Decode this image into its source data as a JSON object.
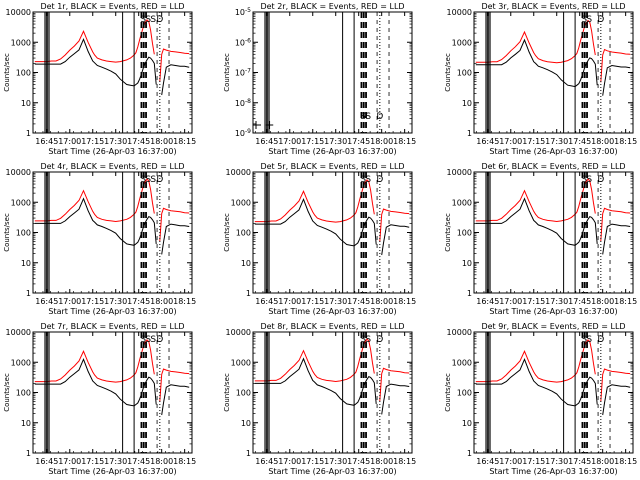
{
  "figure": {
    "start_time_label": "Start Time (26-Apr-03 16:37:00)",
    "ylabel": "Counts/sec"
  },
  "colors": {
    "events": "#000000",
    "lld": "#ff0000",
    "axes": "#000000"
  },
  "chart_data": [
    {
      "type": "line",
      "title": "Det 1r, BLACK = Events, RED = LLD",
      "scale": "log",
      "ylim": [
        1,
        10000
      ],
      "yticks": [
        "1",
        "10",
        "100",
        "1000",
        "10000"
      ],
      "xlim": [
        16.6,
        18.33
      ],
      "xticks": [
        "16:45",
        "17:00",
        "17:15",
        "17:30",
        "17:45",
        "18:00",
        "18:15"
      ],
      "has_data": true,
      "flags": [
        "S",
        "S",
        "S",
        "D"
      ]
    },
    {
      "type": "line",
      "title": "Det 2r, BLACK = Events, RED = LLD",
      "scale": "log",
      "ylim": [
        1e-09,
        1e-05
      ],
      "yticks": [
        "10^-9",
        "10^-8",
        "10^-7",
        "10^-6",
        "10^-5"
      ],
      "xlim": [
        16.6,
        18.33
      ],
      "xticks": [
        "16:45",
        "17:00",
        "17:15",
        "17:30",
        "17:45",
        "18:00",
        "18:15"
      ],
      "has_data": false,
      "flags": [
        "S",
        "S",
        "D"
      ]
    },
    {
      "type": "line",
      "title": "Det 3r, BLACK = Events, RED = LLD",
      "scale": "log",
      "ylim": [
        1,
        10000
      ],
      "yticks": [
        "1",
        "10",
        "100",
        "1000",
        "10000"
      ],
      "xlim": [
        16.6,
        18.33
      ],
      "xticks": [
        "16:45",
        "17:00",
        "17:15",
        "17:30",
        "17:45",
        "18:00",
        "18:15"
      ],
      "has_data": true,
      "flags": [
        "S",
        "S",
        "D"
      ]
    },
    {
      "type": "line",
      "title": "Det 4r, BLACK = Events, RED = LLD",
      "scale": "log",
      "ylim": [
        1,
        10000
      ],
      "yticks": [
        "1",
        "10",
        "100",
        "1000",
        "10000"
      ],
      "xlim": [
        16.6,
        18.33
      ],
      "xticks": [
        "16:45",
        "17:00",
        "17:15",
        "17:30",
        "17:45",
        "18:00",
        "18:15"
      ],
      "has_data": true,
      "flags": [
        "S",
        "S",
        "S",
        "D"
      ]
    },
    {
      "type": "line",
      "title": "Det 5r, BLACK = Events, RED = LLD",
      "scale": "log",
      "ylim": [
        1,
        10000
      ],
      "yticks": [
        "1",
        "10",
        "100",
        "1000",
        "10000"
      ],
      "xlim": [
        16.6,
        18.33
      ],
      "xticks": [
        "16:45",
        "17:00",
        "17:15",
        "17:30",
        "17:45",
        "18:00",
        "18:15"
      ],
      "has_data": true,
      "flags": [
        "S",
        "S",
        "D"
      ]
    },
    {
      "type": "line",
      "title": "Det 6r, BLACK = Events, RED = LLD",
      "scale": "log",
      "ylim": [
        1,
        10000
      ],
      "yticks": [
        "1",
        "10",
        "100",
        "1000",
        "10000"
      ],
      "xlim": [
        16.6,
        18.33
      ],
      "xticks": [
        "16:45",
        "17:00",
        "17:15",
        "17:30",
        "17:45",
        "18:00",
        "18:15"
      ],
      "has_data": true,
      "flags": [
        "S",
        "S",
        "D"
      ]
    },
    {
      "type": "line",
      "title": "Det 7r, BLACK = Events, RED = LLD",
      "scale": "log",
      "ylim": [
        1,
        10000
      ],
      "yticks": [
        "1",
        "10",
        "100",
        "1000",
        "10000"
      ],
      "xlim": [
        16.6,
        18.33
      ],
      "xticks": [
        "16:45",
        "17:00",
        "17:15",
        "17:30",
        "17:45",
        "18:00",
        "18:15"
      ],
      "has_data": true,
      "flags": [
        "S",
        "S",
        "S",
        "D"
      ]
    },
    {
      "type": "line",
      "title": "Det 8r, BLACK = Events, RED = LLD",
      "scale": "log",
      "ylim": [
        1,
        10000
      ],
      "yticks": [
        "1",
        "10",
        "100",
        "1000",
        "10000"
      ],
      "xlim": [
        16.6,
        18.33
      ],
      "xticks": [
        "16:45",
        "17:00",
        "17:15",
        "17:30",
        "17:45",
        "18:00",
        "18:15"
      ],
      "has_data": true,
      "flags": [
        "S",
        "S",
        "D"
      ]
    },
    {
      "type": "line",
      "title": "Det 9r, BLACK = Events, RED = LLD",
      "scale": "log",
      "ylim": [
        1,
        10000
      ],
      "yticks": [
        "1",
        "10",
        "100",
        "1000",
        "10000"
      ],
      "xlim": [
        16.6,
        18.33
      ],
      "xticks": [
        "16:45",
        "17:00",
        "17:15",
        "17:30",
        "17:45",
        "18:00",
        "18:15"
      ],
      "has_data": true,
      "flags": [
        "S",
        "S",
        "D"
      ]
    }
  ],
  "series_template": {
    "times": [
      16.62,
      16.7,
      16.75,
      16.8,
      16.85,
      16.9,
      16.95,
      17.0,
      17.05,
      17.1,
      17.15,
      17.2,
      17.25,
      17.27,
      17.3,
      17.35,
      17.4,
      17.45,
      17.5,
      17.55,
      17.62,
      17.66,
      17.7,
      17.72,
      17.74,
      17.76,
      17.78,
      17.8,
      17.82,
      17.84,
      17.86,
      17.88,
      17.9,
      17.92,
      17.94,
      17.96,
      17.98,
      18.0,
      18.02,
      18.05,
      18.1,
      18.15,
      18.2,
      18.25,
      18.3
    ],
    "events": [
      190,
      190,
      190,
      190,
      190,
      190,
      230,
      320,
      420,
      560,
      1250,
      500,
      240,
      210,
      170,
      150,
      130,
      110,
      90,
      60,
      40,
      38,
      36,
      40,
      45,
      60,
      90,
      140,
      200,
      260,
      320,
      300,
      250,
      200,
      40,
      null,
      null,
      18,
      45,
      150,
      180,
      170,
      160,
      160,
      150
    ],
    "lld": [
      230,
      230,
      230,
      240,
      240,
      280,
      380,
      550,
      750,
      1100,
      2300,
      1000,
      480,
      380,
      300,
      260,
      240,
      230,
      220,
      230,
      260,
      300,
      380,
      450,
      700,
      1200,
      2000,
      3200,
      4500,
      5500,
      4800,
      2500,
      900,
      400,
      null,
      null,
      50,
      400,
      600,
      550,
      500,
      480,
      460,
      430,
      420
    ]
  }
}
